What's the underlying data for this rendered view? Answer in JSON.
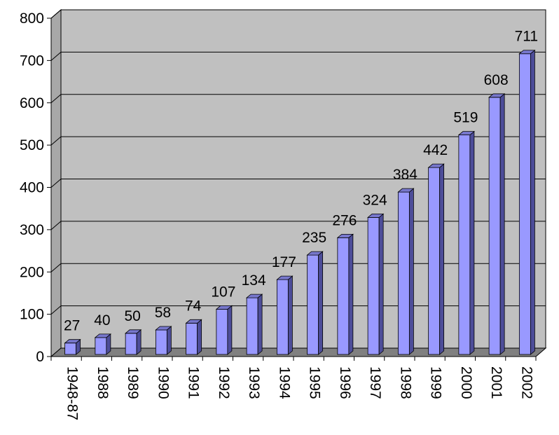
{
  "chart_data": {
    "type": "bar",
    "style": "3d-column",
    "categories": [
      "1948-87",
      "1988",
      "1989",
      "1990",
      "1991",
      "1992",
      "1993",
      "1994",
      "1995",
      "1996",
      "1997",
      "1998",
      "1999",
      "2000",
      "2001",
      "2002"
    ],
    "values": [
      27,
      40,
      50,
      58,
      74,
      107,
      134,
      177,
      235,
      276,
      324,
      384,
      442,
      519,
      608,
      711
    ],
    "data_labels": [
      "27",
      "40",
      "50",
      "58",
      "74",
      "107",
      "134",
      "177",
      "235",
      "276",
      "324",
      "384",
      "442",
      "519",
      "608",
      "711"
    ],
    "yticks": [
      "0",
      "100",
      "200",
      "300",
      "400",
      "500",
      "600",
      "700",
      "800"
    ],
    "ylim": [
      0,
      800
    ],
    "title": "",
    "xlabel": "",
    "ylabel": "",
    "grid": true,
    "legend": "none",
    "colors": {
      "bar_front": "#9999ff",
      "bar_side": "#4d4d99",
      "bar_top": "#7777cc",
      "wall": "#c0c0c0",
      "floor": "#808080",
      "gridline": "#000000"
    }
  }
}
